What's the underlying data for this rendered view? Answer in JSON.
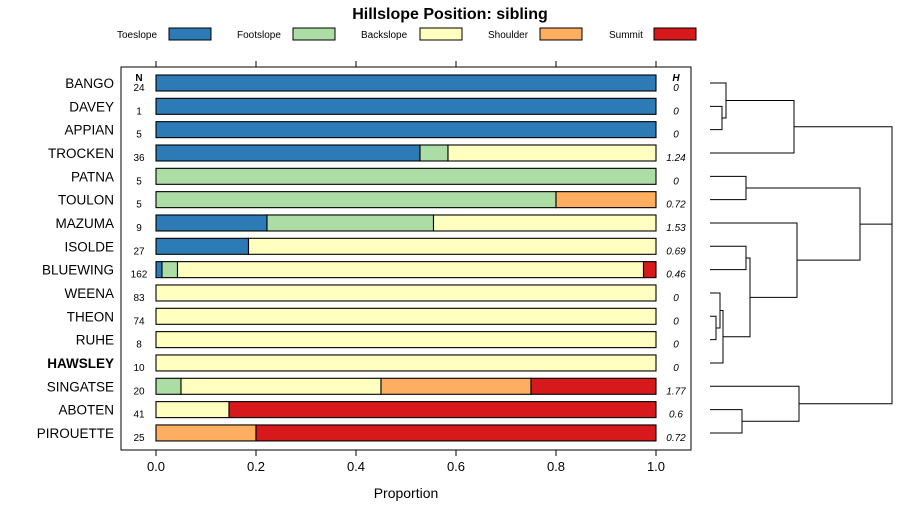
{
  "chart_data": {
    "type": "bar",
    "orientation": "horizontal-stacked",
    "title": "Hillslope Position: sibling",
    "xlabel": "Proportion",
    "ylabel": "",
    "xlim": [
      0,
      1
    ],
    "x_ticks": [
      "0.0",
      "0.2",
      "0.4",
      "0.6",
      "0.8",
      "1.0"
    ],
    "n_header": "N",
    "h_header": "H",
    "legend_position": "top",
    "series": [
      {
        "name": "Toeslope",
        "color": "#2c7bb6"
      },
      {
        "name": "Footslope",
        "color": "#abdda4"
      },
      {
        "name": "Backslope",
        "color": "#ffffbf"
      },
      {
        "name": "Shoulder",
        "color": "#fdae61"
      },
      {
        "name": "Summit",
        "color": "#d7191c"
      }
    ],
    "categories": [
      {
        "name": "BANGO",
        "n": "24",
        "h": "0",
        "values": [
          1.0,
          0,
          0,
          0,
          0
        ]
      },
      {
        "name": "DAVEY",
        "n": "1",
        "h": "0",
        "values": [
          1.0,
          0,
          0,
          0,
          0
        ]
      },
      {
        "name": "APPIAN",
        "n": "5",
        "h": "0",
        "values": [
          1.0,
          0,
          0,
          0,
          0
        ]
      },
      {
        "name": "TROCKEN",
        "n": "36",
        "h": "1.24",
        "values": [
          0.528,
          0.056,
          0.416,
          0,
          0
        ]
      },
      {
        "name": "PATNA",
        "n": "5",
        "h": "0",
        "values": [
          0,
          1.0,
          0,
          0,
          0
        ]
      },
      {
        "name": "TOULON",
        "n": "5",
        "h": "0.72",
        "values": [
          0,
          0.8,
          0,
          0.2,
          0
        ]
      },
      {
        "name": "MAZUMA",
        "n": "9",
        "h": "1.53",
        "values": [
          0.222,
          0.333,
          0.445,
          0,
          0
        ]
      },
      {
        "name": "ISOLDE",
        "n": "27",
        "h": "0.69",
        "values": [
          0.185,
          0,
          0.815,
          0,
          0
        ]
      },
      {
        "name": "BLUEWING",
        "n": "162",
        "h": "0.46",
        "values": [
          0.012,
          0.031,
          0.932,
          0,
          0.025
        ]
      },
      {
        "name": "WEENA",
        "n": "83",
        "h": "0",
        "values": [
          0,
          0,
          1.0,
          0,
          0
        ]
      },
      {
        "name": "THEON",
        "n": "74",
        "h": "0",
        "values": [
          0,
          0,
          1.0,
          0,
          0
        ]
      },
      {
        "name": "RUHE",
        "n": "8",
        "h": "0",
        "values": [
          0,
          0,
          1.0,
          0,
          0
        ]
      },
      {
        "name": "HAWSLEY",
        "n": "10",
        "h": "0",
        "values": [
          0,
          0,
          1.0,
          0,
          0
        ],
        "bold": true
      },
      {
        "name": "SINGATSE",
        "n": "20",
        "h": "1.77",
        "values": [
          0,
          0.05,
          0.4,
          0.3,
          0.25
        ]
      },
      {
        "name": "ABOTEN",
        "n": "41",
        "h": "0.6",
        "values": [
          0,
          0,
          0.146,
          0,
          0.854
        ]
      },
      {
        "name": "PIROUETTE",
        "n": "25",
        "h": "0.72",
        "values": [
          0,
          0,
          0,
          0.2,
          0.8
        ]
      }
    ]
  }
}
